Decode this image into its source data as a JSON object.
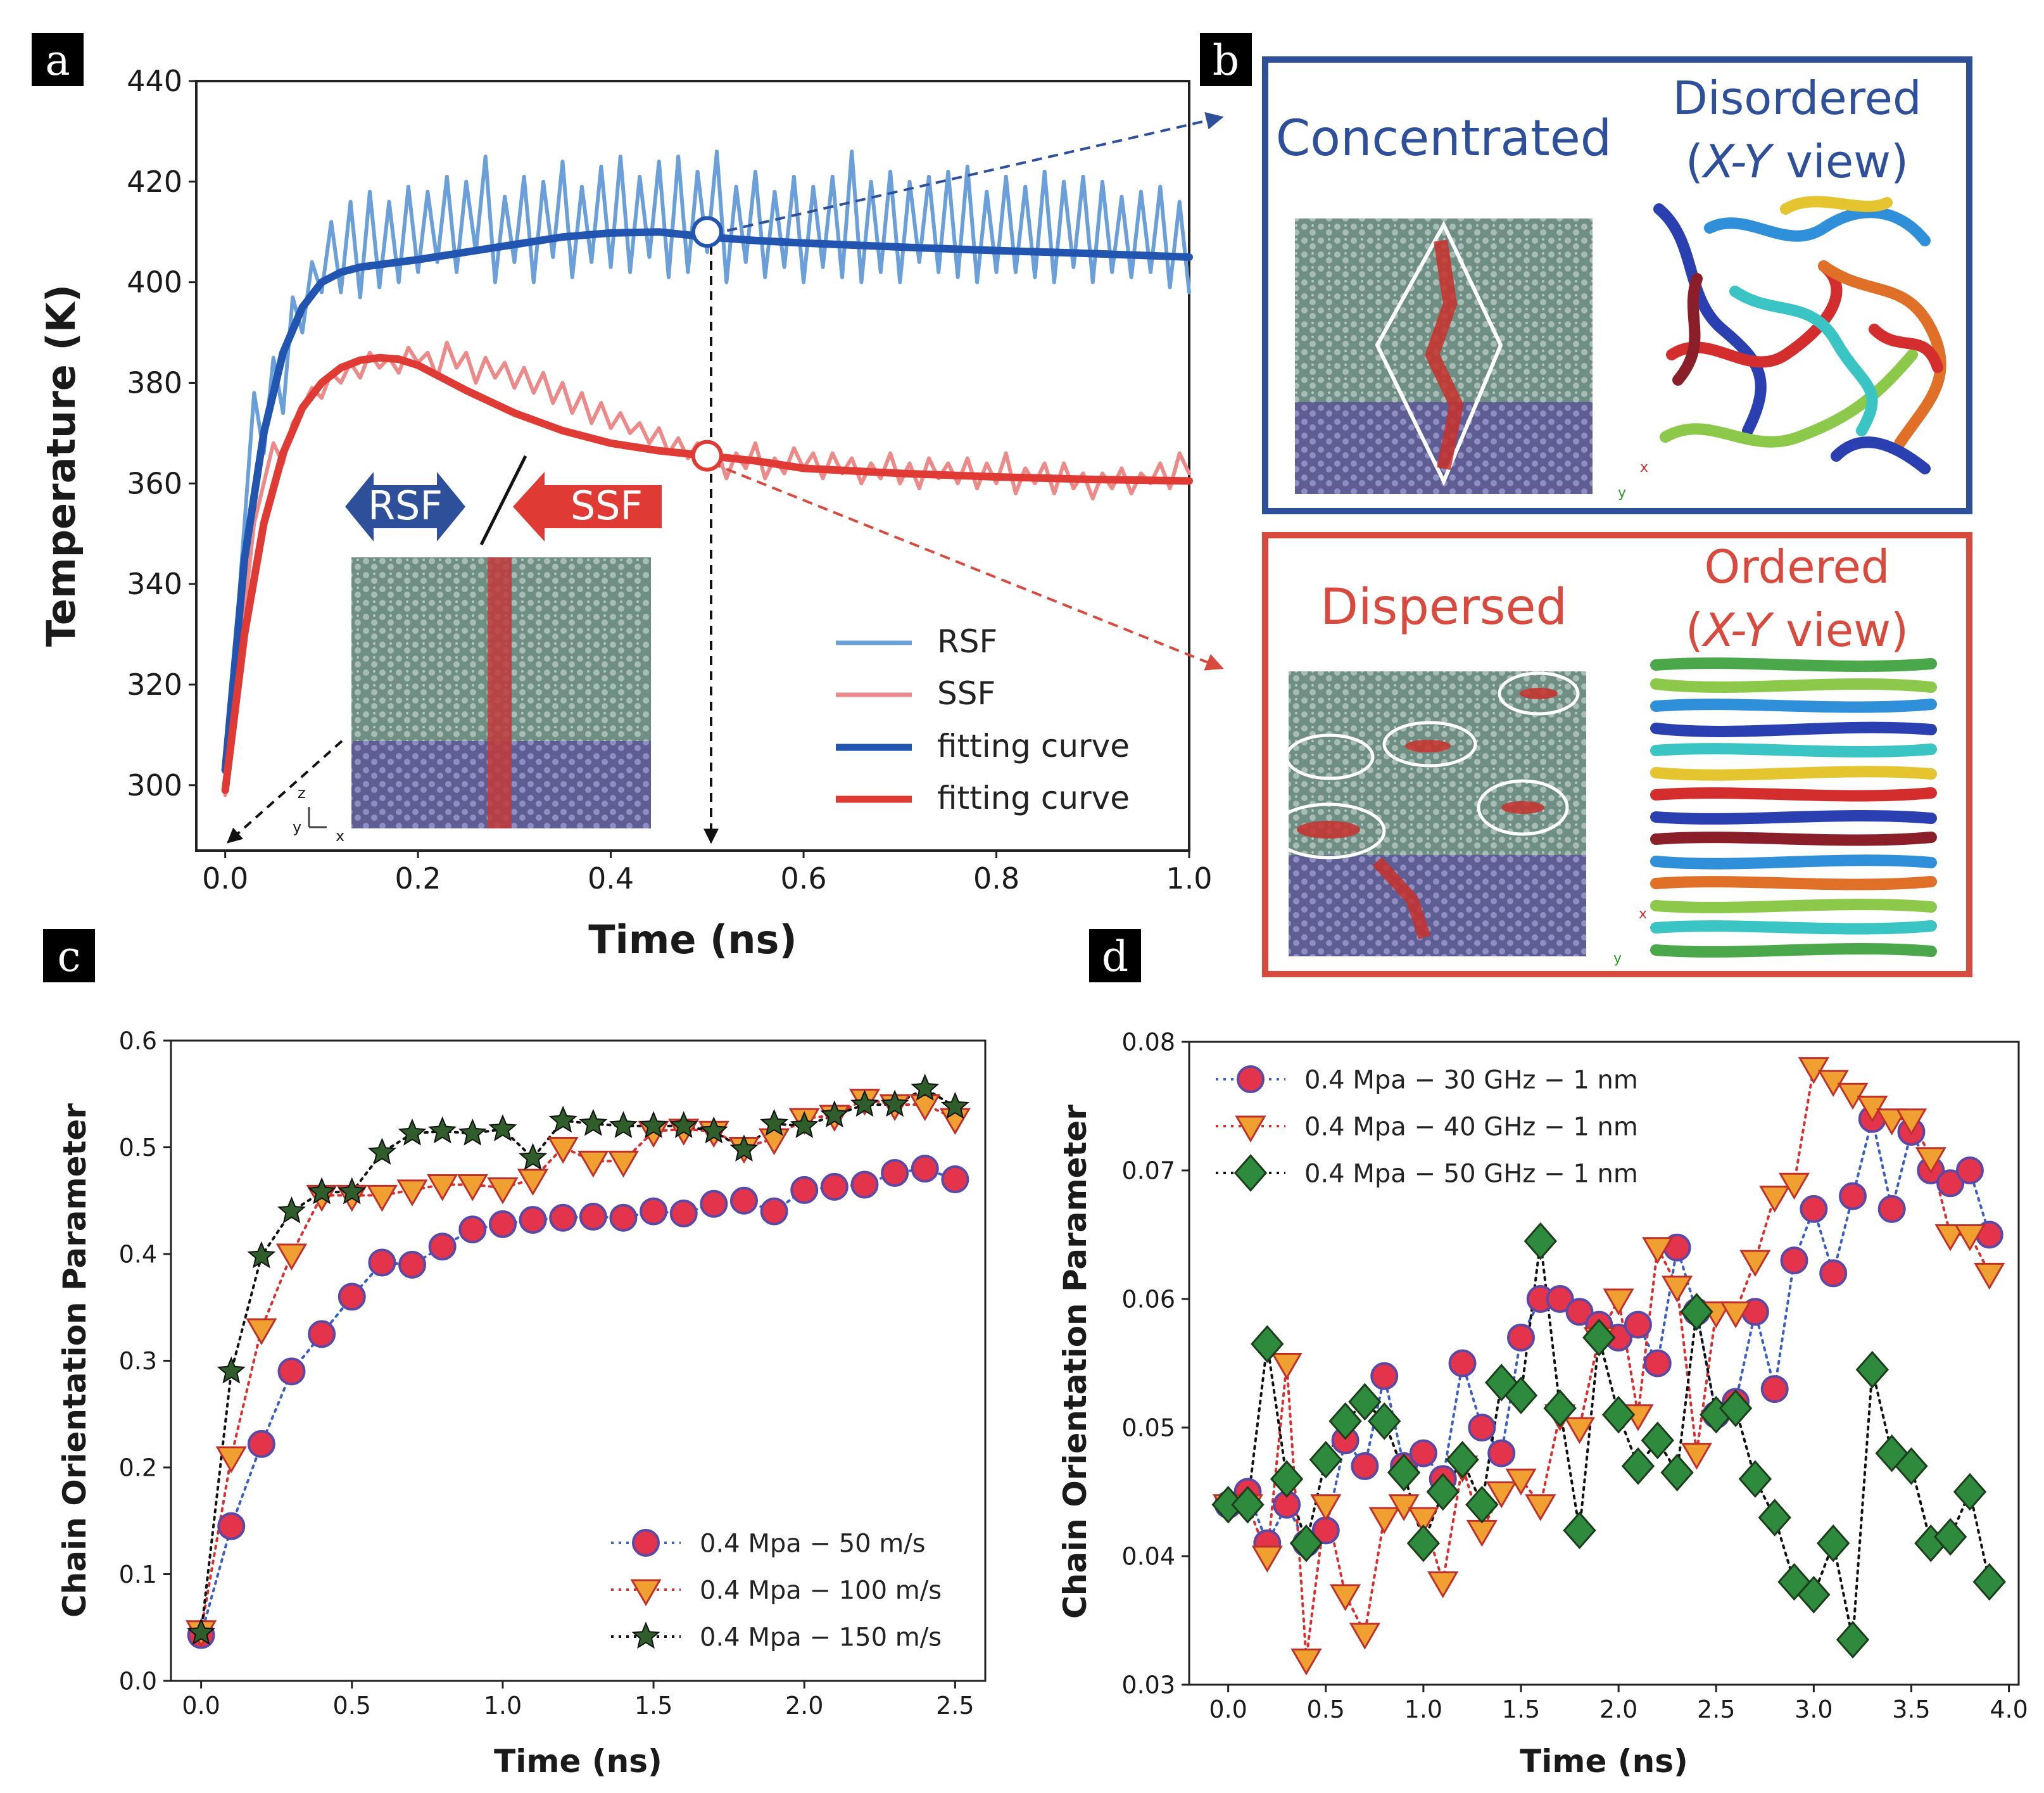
{
  "panel_labels": {
    "a": "a",
    "b": "b",
    "c": "c",
    "d": "d"
  },
  "colors": {
    "rsf_raw": "#6b9fd9",
    "rsf_fit": "#2255b0",
    "ssf_raw": "#ec8a8a",
    "ssf_fit": "#e03a35",
    "panel_b_top": "#2e4f9a",
    "panel_b_bottom": "#d84a3e",
    "series_circle": "#e3344b",
    "series_triangle": "#f0a030",
    "series_star": "#2f5e2a",
    "series_diamond": "#2e8b3e"
  },
  "panel_a": {
    "inset": {
      "rsf": "RSF",
      "ssf": "SSF",
      "axes": {
        "z": "z",
        "y": "y",
        "x": "x"
      }
    }
  },
  "panel_b": {
    "top": {
      "left": "Concentrated",
      "right_line1": "Disordered",
      "right_line2_prefix": "(",
      "right_line2_italic": "X-Y",
      "right_line2_suffix": " view)"
    },
    "bottom": {
      "left": "Dispersed",
      "right_line1": "Ordered",
      "right_line2_prefix": "(",
      "right_line2_italic": "X-Y",
      "right_line2_suffix": " view)"
    },
    "axes": {
      "y": "y",
      "x": "x"
    }
  },
  "chart_data": [
    {
      "id": "a",
      "type": "line",
      "xlabel": "Time (ns)",
      "ylabel": "Temperature (K)",
      "xlim": [
        -0.03,
        1.0
      ],
      "ylim": [
        287,
        440
      ],
      "xticks": [
        0.0,
        0.2,
        0.4,
        0.6,
        0.8,
        1.0
      ],
      "xtick_labels": [
        "0.0",
        "0.2",
        "0.4",
        "0.6",
        "0.8",
        "1.0"
      ],
      "yticks": [
        300,
        320,
        340,
        360,
        380,
        400,
        420,
        440
      ],
      "ytick_labels": [
        "300",
        "320",
        "340",
        "360",
        "380",
        "400",
        "420",
        "440"
      ],
      "legend": [
        "RSF",
        "SSF",
        "fitting curve",
        "fitting curve"
      ],
      "series": [
        {
          "name": "RSF",
          "x": [
            0,
            0.01,
            0.02,
            0.03,
            0.04,
            0.05,
            0.06,
            0.07,
            0.08,
            0.09,
            0.1,
            0.11,
            0.12,
            0.13,
            0.14,
            0.15,
            0.16,
            0.17,
            0.18,
            0.19,
            0.2,
            0.21,
            0.22,
            0.23,
            0.24,
            0.25,
            0.26,
            0.27,
            0.28,
            0.29,
            0.3,
            0.31,
            0.32,
            0.33,
            0.34,
            0.35,
            0.36,
            0.37,
            0.38,
            0.39,
            0.4,
            0.41,
            0.42,
            0.43,
            0.44,
            0.45,
            0.46,
            0.47,
            0.48,
            0.49,
            0.5,
            0.51,
            0.52,
            0.53,
            0.54,
            0.55,
            0.56,
            0.57,
            0.58,
            0.59,
            0.6,
            0.61,
            0.62,
            0.63,
            0.64,
            0.65,
            0.66,
            0.67,
            0.68,
            0.69,
            0.7,
            0.71,
            0.72,
            0.73,
            0.74,
            0.75,
            0.76,
            0.77,
            0.78,
            0.79,
            0.8,
            0.81,
            0.82,
            0.83,
            0.84,
            0.85,
            0.86,
            0.87,
            0.88,
            0.89,
            0.9,
            0.91,
            0.92,
            0.93,
            0.94,
            0.95,
            0.96,
            0.97,
            0.98,
            0.99,
            1.0
          ],
          "values": [
            302,
            326,
            352,
            378,
            366,
            385,
            374,
            397,
            390,
            404,
            398,
            412,
            398,
            416,
            397,
            418,
            399,
            416,
            400,
            419,
            402,
            418,
            404,
            421,
            402,
            420,
            406,
            425,
            400,
            417,
            404,
            421,
            400,
            420,
            405,
            424,
            401,
            419,
            404,
            423,
            403,
            425,
            402,
            421,
            405,
            424,
            401,
            425,
            402,
            422,
            406,
            426,
            400,
            419,
            404,
            422,
            401,
            418,
            403,
            421,
            400,
            419,
            403,
            421,
            401,
            426,
            400,
            420,
            402,
            422,
            400,
            420,
            404,
            421,
            402,
            422,
            401,
            423,
            400,
            418,
            402,
            421,
            402,
            419,
            401,
            422,
            400,
            420,
            403,
            421,
            400,
            420,
            402,
            417,
            401,
            418,
            402,
            419,
            399,
            416,
            398
          ]
        },
        {
          "name": "SSF",
          "x": [
            0,
            0.01,
            0.02,
            0.03,
            0.04,
            0.05,
            0.06,
            0.07,
            0.08,
            0.09,
            0.1,
            0.11,
            0.12,
            0.13,
            0.14,
            0.15,
            0.16,
            0.17,
            0.18,
            0.19,
            0.2,
            0.21,
            0.22,
            0.23,
            0.24,
            0.25,
            0.26,
            0.27,
            0.28,
            0.29,
            0.3,
            0.31,
            0.32,
            0.33,
            0.34,
            0.35,
            0.36,
            0.37,
            0.38,
            0.39,
            0.4,
            0.41,
            0.42,
            0.43,
            0.44,
            0.45,
            0.46,
            0.47,
            0.48,
            0.49,
            0.5,
            0.51,
            0.52,
            0.53,
            0.54,
            0.55,
            0.56,
            0.57,
            0.58,
            0.59,
            0.6,
            0.61,
            0.62,
            0.63,
            0.64,
            0.65,
            0.66,
            0.67,
            0.68,
            0.69,
            0.7,
            0.71,
            0.72,
            0.73,
            0.74,
            0.75,
            0.76,
            0.77,
            0.78,
            0.79,
            0.8,
            0.81,
            0.82,
            0.83,
            0.84,
            0.85,
            0.86,
            0.87,
            0.88,
            0.89,
            0.9,
            0.91,
            0.92,
            0.93,
            0.94,
            0.95,
            0.96,
            0.97,
            0.98,
            0.99,
            1.0
          ],
          "values": [
            298,
            318,
            335,
            352,
            360,
            368,
            364,
            372,
            375,
            379,
            377,
            382,
            380,
            384,
            381,
            386,
            383,
            385,
            382,
            387,
            384,
            386,
            381,
            388,
            383,
            386,
            380,
            385,
            381,
            384,
            379,
            383,
            378,
            382,
            376,
            380,
            374,
            378,
            372,
            376,
            371,
            374,
            370,
            372,
            368,
            371,
            366,
            369,
            365,
            368,
            364,
            367,
            361,
            366,
            363,
            368,
            361,
            365,
            362,
            367,
            363,
            366,
            361,
            366,
            362,
            365,
            360,
            364,
            361,
            366,
            360,
            364,
            359,
            365,
            361,
            364,
            360,
            365,
            359,
            364,
            360,
            366,
            358,
            363,
            360,
            364,
            358,
            364,
            359,
            362,
            357,
            362,
            359,
            363,
            358,
            362,
            360,
            364,
            359,
            366,
            362
          ]
        },
        {
          "name": "RSF fitting curve",
          "x": [
            0,
            0.02,
            0.04,
            0.06,
            0.08,
            0.1,
            0.12,
            0.14,
            0.16,
            0.2,
            0.25,
            0.3,
            0.35,
            0.4,
            0.45,
            0.5,
            0.55,
            0.6,
            0.7,
            0.8,
            0.9,
            1.0
          ],
          "values": [
            303,
            345,
            370,
            386,
            395,
            400,
            402,
            403,
            403.5,
            404.5,
            406,
            407.5,
            409,
            409.8,
            410,
            409,
            408.3,
            407.8,
            407,
            406.3,
            405.7,
            405
          ]
        },
        {
          "name": "SSF fitting curve",
          "x": [
            0,
            0.02,
            0.04,
            0.06,
            0.08,
            0.1,
            0.12,
            0.14,
            0.16,
            0.18,
            0.2,
            0.22,
            0.25,
            0.3,
            0.35,
            0.4,
            0.45,
            0.5,
            0.55,
            0.6,
            0.7,
            0.8,
            0.9,
            1.0
          ],
          "values": [
            299,
            330,
            352,
            366,
            375,
            380,
            383,
            384.5,
            385,
            384.7,
            383.5,
            381.5,
            378.5,
            374,
            370.5,
            368,
            366.5,
            365.5,
            364.5,
            363,
            362,
            361.3,
            360.8,
            360.5
          ]
        }
      ],
      "markers": [
        {
          "x": 0.5,
          "y": 410
        },
        {
          "x": 0.5,
          "y": 365.5
        }
      ]
    },
    {
      "id": "c",
      "type": "scatter",
      "xlabel": "Time (ns)",
      "ylabel": "Chain Orientation Parameter",
      "xlim": [
        -0.1,
        2.6
      ],
      "ylim": [
        0.0,
        0.6
      ],
      "xticks": [
        0.0,
        0.5,
        1.0,
        1.5,
        2.0,
        2.5
      ],
      "xtick_labels": [
        "0.0",
        "0.5",
        "1.0",
        "1.5",
        "2.0",
        "2.5"
      ],
      "yticks": [
        0.0,
        0.1,
        0.2,
        0.3,
        0.4,
        0.5,
        0.6
      ],
      "ytick_labels": [
        "0.0",
        "0.1",
        "0.2",
        "0.3",
        "0.4",
        "0.5",
        "0.6"
      ],
      "x": [
        0.0,
        0.1,
        0.2,
        0.3,
        0.4,
        0.5,
        0.6,
        0.7,
        0.8,
        0.9,
        1.0,
        1.1,
        1.2,
        1.3,
        1.4,
        1.5,
        1.6,
        1.7,
        1.8,
        1.9,
        2.0,
        2.1,
        2.2,
        2.3,
        2.4,
        2.5
      ],
      "series": [
        {
          "name": "0.4 Mpa − 50 m/s",
          "values": [
            0.043,
            0.145,
            0.222,
            0.29,
            0.325,
            0.36,
            0.392,
            0.39,
            0.407,
            0.423,
            0.428,
            0.432,
            0.434,
            0.435,
            0.434,
            0.44,
            0.438,
            0.447,
            0.45,
            0.44,
            0.46,
            0.463,
            0.465,
            0.476,
            0.48,
            0.47
          ]
        },
        {
          "name": "0.4 Mpa − 100 m/s",
          "values": [
            0.047,
            0.21,
            0.33,
            0.4,
            0.455,
            0.455,
            0.455,
            0.46,
            0.465,
            0.465,
            0.462,
            0.47,
            0.5,
            0.487,
            0.487,
            0.515,
            0.517,
            0.515,
            0.5,
            0.508,
            0.527,
            0.53,
            0.545,
            0.54,
            0.54,
            0.527
          ]
        },
        {
          "name": "0.4 Mpa − 150 m/s",
          "values": [
            0.045,
            0.29,
            0.398,
            0.44,
            0.458,
            0.458,
            0.495,
            0.513,
            0.515,
            0.513,
            0.517,
            0.49,
            0.525,
            0.522,
            0.52,
            0.52,
            0.52,
            0.515,
            0.498,
            0.522,
            0.52,
            0.53,
            0.54,
            0.54,
            0.555,
            0.538
          ]
        }
      ]
    },
    {
      "id": "d",
      "type": "scatter",
      "xlabel": "Time (ns)",
      "ylabel": "Chain Orientation Parameter",
      "xlim": [
        -0.2,
        4.05
      ],
      "ylim": [
        0.03,
        0.08
      ],
      "xticks": [
        0.0,
        0.5,
        1.0,
        1.5,
        2.0,
        2.5,
        3.0,
        3.5,
        4.0
      ],
      "xtick_labels": [
        "0.0",
        "0.5",
        "1.0",
        "1.5",
        "2.0",
        "2.5",
        "3.0",
        "3.5",
        "4.0"
      ],
      "yticks": [
        0.03,
        0.04,
        0.05,
        0.06,
        0.07,
        0.08
      ],
      "ytick_labels": [
        "0.03",
        "0.04",
        "0.05",
        "0.06",
        "0.07",
        "0.08"
      ],
      "x": [
        0.0,
        0.1,
        0.2,
        0.3,
        0.4,
        0.5,
        0.6,
        0.7,
        0.8,
        0.9,
        1.0,
        1.1,
        1.2,
        1.3,
        1.4,
        1.5,
        1.6,
        1.7,
        1.8,
        1.9,
        2.0,
        2.1,
        2.2,
        2.3,
        2.4,
        2.5,
        2.6,
        2.7,
        2.8,
        2.9,
        3.0,
        3.1,
        3.2,
        3.3,
        3.4,
        3.5,
        3.6,
        3.7,
        3.8,
        3.9
      ],
      "series": [
        {
          "name": "0.4 Mpa − 30 GHz − 1 nm",
          "values": [
            0.044,
            0.045,
            0.041,
            0.044,
            0.041,
            0.042,
            0.049,
            0.047,
            0.054,
            0.047,
            0.048,
            0.046,
            0.055,
            0.05,
            0.048,
            0.057,
            0.06,
            0.06,
            0.059,
            0.058,
            0.057,
            0.058,
            0.055,
            0.064,
            0.059,
            0.051,
            0.052,
            0.059,
            0.053,
            0.063,
            0.067,
            0.062,
            0.068,
            0.074,
            0.067,
            0.073,
            0.07,
            0.069,
            0.07,
            0.065
          ]
        },
        {
          "name": "0.4 Mpa − 40 GHz − 1 nm",
          "values": [
            0.044,
            0.044,
            0.04,
            0.055,
            0.032,
            0.044,
            0.037,
            0.034,
            0.043,
            0.044,
            0.043,
            0.038,
            0.047,
            0.042,
            0.045,
            0.046,
            0.044,
            0.051,
            0.05,
            0.057,
            0.06,
            0.051,
            0.064,
            0.061,
            0.048,
            0.059,
            0.059,
            0.063,
            0.068,
            0.069,
            0.078,
            0.077,
            0.076,
            0.075,
            0.074,
            0.074,
            0.071,
            0.065,
            0.065,
            0.062
          ]
        },
        {
          "name": "0.4 Mpa − 50 GHz − 1 nm",
          "values": [
            0.044,
            0.044,
            0.0565,
            0.046,
            0.041,
            0.0475,
            0.0505,
            0.052,
            0.0505,
            0.0465,
            0.041,
            0.045,
            0.0475,
            0.044,
            0.0535,
            0.0525,
            0.0645,
            0.0515,
            0.042,
            0.057,
            0.051,
            0.047,
            0.049,
            0.0465,
            0.059,
            0.051,
            0.0515,
            0.046,
            0.043,
            0.038,
            0.037,
            0.041,
            0.0335,
            0.0545,
            0.048,
            0.047,
            0.041,
            0.0415,
            0.045,
            0.038
          ]
        }
      ]
    }
  ]
}
